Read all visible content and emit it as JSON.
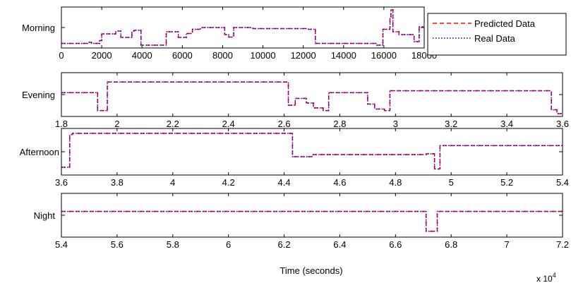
{
  "colors": {
    "predicted": "#ff0000",
    "real": "#0000ff",
    "axis": "#000000"
  },
  "xlabel": "Time (seconds)",
  "x_exponent": "x 10",
  "x_exponent_power": "4",
  "legend": [
    {
      "label": "Predicted Data",
      "style": "dashed",
      "color": "#ff0000"
    },
    {
      "label": "Real Data",
      "style": "dotted",
      "color": "#0000ff"
    }
  ],
  "chart_data": [
    {
      "type": "line",
      "ylabel": "Morning",
      "xlim": [
        0,
        18000
      ],
      "ylim": [
        0,
        1
      ],
      "xticks": [
        0,
        2000,
        4000,
        6000,
        8000,
        10000,
        12000,
        14000,
        16000,
        18000
      ],
      "xtick_labels": [
        "0",
        "2000",
        "4000",
        "6000",
        "8000",
        "10000",
        "12000",
        "14000",
        "16000",
        "18000"
      ],
      "step_x": [
        0,
        1300,
        1500,
        1900,
        2000,
        2700,
        2950,
        3500,
        3600,
        3950,
        4050,
        5200,
        5800,
        6200,
        6500,
        6900,
        8100,
        8300,
        8550,
        9500,
        12250,
        12600,
        15650,
        15950,
        16300,
        16350,
        16450,
        16750,
        17100,
        17500,
        17750,
        18000
      ],
      "step_y": [
        0.05,
        0.08,
        0.05,
        0.13,
        0.32,
        0.4,
        0.22,
        0.4,
        0.42,
        0.0,
        0.0,
        0.38,
        0.22,
        0.33,
        0.45,
        0.5,
        0.3,
        0.23,
        0.5,
        0.47,
        0.45,
        0.05,
        0.0,
        0.45,
        0.8,
        1.0,
        0.38,
        0.3,
        0.3,
        0.1,
        0.52,
        0.52
      ],
      "series": [
        {
          "name": "Predicted Data"
        },
        {
          "name": "Real Data"
        }
      ]
    },
    {
      "type": "line",
      "ylabel": "Evening",
      "xlim": [
        18000,
        36000
      ],
      "ylim": [
        0,
        1
      ],
      "xticks": [
        18000,
        20000,
        22000,
        24000,
        26000,
        28000,
        30000,
        32000,
        34000,
        36000
      ],
      "xtick_labels": [
        "1.8",
        "2",
        "2.2",
        "2.4",
        "2.6",
        "2.8",
        "3",
        "3.2",
        "3.4",
        "3.6"
      ],
      "step_x": [
        18000,
        19100,
        19300,
        19500,
        19650,
        26150,
        26400,
        26800,
        27050,
        27400,
        27600,
        29000,
        29250,
        29600,
        29800,
        35600,
        35800,
        36000
      ],
      "step_y": [
        0.55,
        0.55,
        0.08,
        0.08,
        0.83,
        0.22,
        0.4,
        0.28,
        0.15,
        0.08,
        0.55,
        0.25,
        0.12,
        0.08,
        0.6,
        0.1,
        0.0,
        0.0
      ],
      "series": [
        {
          "name": "Predicted Data"
        },
        {
          "name": "Real Data"
        }
      ]
    },
    {
      "type": "line",
      "ylabel": "Afternoon",
      "xlim": [
        36000,
        54000
      ],
      "ylim": [
        0,
        1
      ],
      "xticks": [
        36000,
        38000,
        40000,
        42000,
        44000,
        46000,
        48000,
        50000,
        52000,
        54000
      ],
      "xtick_labels": [
        "3.6",
        "3.8",
        "4",
        "4.2",
        "4.4",
        "4.6",
        "4.8",
        "5",
        "5.2",
        "5.4"
      ],
      "step_x": [
        36000,
        36300,
        36400,
        44300,
        45000,
        49100,
        49400,
        49600,
        54000
      ],
      "step_y": [
        0.12,
        0.92,
        0.95,
        0.38,
        0.43,
        0.45,
        0.08,
        0.65,
        0.65
      ],
      "series": [
        {
          "name": "Predicted Data"
        },
        {
          "name": "Real Data"
        }
      ]
    },
    {
      "type": "line",
      "ylabel": "Night",
      "xlim": [
        54000,
        72000
      ],
      "ylim": [
        0,
        1
      ],
      "xticks": [
        54000,
        56000,
        58000,
        60000,
        62000,
        64000,
        66000,
        68000,
        70000,
        72000
      ],
      "xtick_labels": [
        "5.4",
        "5.6",
        "5.8",
        "6",
        "6.2",
        "6.4",
        "6.6",
        "6.8",
        "7",
        "7.2"
      ],
      "step_x": [
        54000,
        67100,
        67500,
        72000
      ],
      "step_y": [
        0.6,
        0.08,
        0.6,
        0.6
      ],
      "series": [
        {
          "name": "Predicted Data"
        },
        {
          "name": "Real Data"
        }
      ]
    }
  ]
}
